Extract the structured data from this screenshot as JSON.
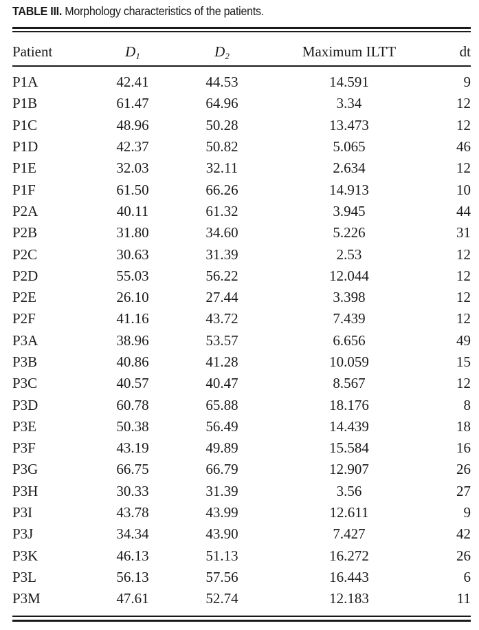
{
  "caption": {
    "label": "TABLE III.",
    "text": " Morphology characteristics of the patients."
  },
  "table": {
    "headers": {
      "patient": "Patient",
      "d1_letter": "D",
      "d1_sub": "1",
      "d2_letter": "D",
      "d2_sub": "2",
      "iltt": "Maximum ILTT",
      "dt": "dt"
    },
    "rows": [
      {
        "patient": "P1A",
        "d1": "42.41",
        "d2": "44.53",
        "iltt": "14.591",
        "dt": "9"
      },
      {
        "patient": "P1B",
        "d1": "61.47",
        "d2": "64.96",
        "iltt": "3.34",
        "dt": "12"
      },
      {
        "patient": "P1C",
        "d1": "48.96",
        "d2": "50.28",
        "iltt": "13.473",
        "dt": "12"
      },
      {
        "patient": "P1D",
        "d1": "42.37",
        "d2": "50.82",
        "iltt": "5.065",
        "dt": "46"
      },
      {
        "patient": "P1E",
        "d1": "32.03",
        "d2": "32.11",
        "iltt": "2.634",
        "dt": "12"
      },
      {
        "patient": "P1F",
        "d1": "61.50",
        "d2": "66.26",
        "iltt": "14.913",
        "dt": "10"
      },
      {
        "patient": "P2A",
        "d1": "40.11",
        "d2": "61.32",
        "iltt": "3.945",
        "dt": "44"
      },
      {
        "patient": "P2B",
        "d1": "31.80",
        "d2": "34.60",
        "iltt": "5.226",
        "dt": "31"
      },
      {
        "patient": "P2C",
        "d1": "30.63",
        "d2": "31.39",
        "iltt": "2.53",
        "dt": "12"
      },
      {
        "patient": "P2D",
        "d1": "55.03",
        "d2": "56.22",
        "iltt": "12.044",
        "dt": "12"
      },
      {
        "patient": "P2E",
        "d1": "26.10",
        "d2": "27.44",
        "iltt": "3.398",
        "dt": "12"
      },
      {
        "patient": "P2F",
        "d1": "41.16",
        "d2": "43.72",
        "iltt": "7.439",
        "dt": "12"
      },
      {
        "patient": "P3A",
        "d1": "38.96",
        "d2": "53.57",
        "iltt": "6.656",
        "dt": "49"
      },
      {
        "patient": "P3B",
        "d1": "40.86",
        "d2": "41.28",
        "iltt": "10.059",
        "dt": "15"
      },
      {
        "patient": "P3C",
        "d1": "40.57",
        "d2": "40.47",
        "iltt": "8.567",
        "dt": "12"
      },
      {
        "patient": "P3D",
        "d1": "60.78",
        "d2": "65.88",
        "iltt": "18.176",
        "dt": "8"
      },
      {
        "patient": "P3E",
        "d1": "50.38",
        "d2": "56.49",
        "iltt": "14.439",
        "dt": "18"
      },
      {
        "patient": "P3F",
        "d1": "43.19",
        "d2": "49.89",
        "iltt": "15.584",
        "dt": "16"
      },
      {
        "patient": "P3G",
        "d1": "66.75",
        "d2": "66.79",
        "iltt": "12.907",
        "dt": "26"
      },
      {
        "patient": "P3H",
        "d1": "30.33",
        "d2": "31.39",
        "iltt": "3.56",
        "dt": "27"
      },
      {
        "patient": "P3I",
        "d1": "43.78",
        "d2": "43.99",
        "iltt": "12.611",
        "dt": "9"
      },
      {
        "patient": "P3J",
        "d1": "34.34",
        "d2": "43.90",
        "iltt": "7.427",
        "dt": "42"
      },
      {
        "patient": "P3K",
        "d1": "46.13",
        "d2": "51.13",
        "iltt": "16.272",
        "dt": "26"
      },
      {
        "patient": "P3L",
        "d1": "56.13",
        "d2": "57.56",
        "iltt": "16.443",
        "dt": "6"
      },
      {
        "patient": "P3M",
        "d1": "47.61",
        "d2": "52.74",
        "iltt": "12.183",
        "dt": "11"
      }
    ]
  }
}
